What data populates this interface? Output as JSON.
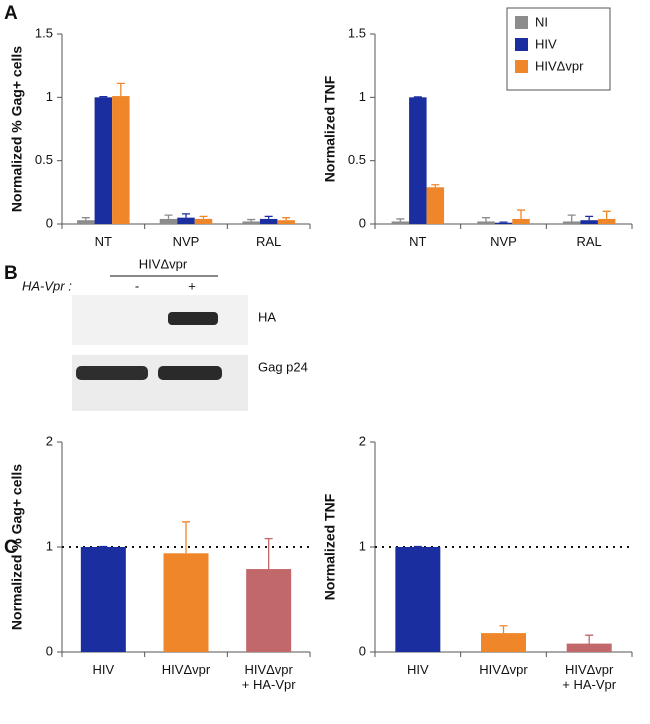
{
  "panel_labels": [
    "A",
    "B",
    "C"
  ],
  "chart_data": [
    {
      "type": "bar",
      "ylabel": "Normalized % Gag+ cells",
      "categories": [
        "NT",
        "NVP",
        "RAL"
      ],
      "ylim": [
        0,
        1.5
      ],
      "yticks": [
        0,
        0.5,
        1,
        1.5
      ],
      "series": [
        {
          "name": "NI",
          "color": "#8c8c8c",
          "values": [
            0.03,
            0.04,
            0.02
          ],
          "errors": [
            0.02,
            0.03,
            0.015
          ]
        },
        {
          "name": "HIV",
          "color": "#1a2ea0",
          "values": [
            1.0,
            0.05,
            0.04
          ],
          "errors": [
            0.005,
            0.03,
            0.02
          ]
        },
        {
          "name": "HIVΔvpr",
          "color": "#f0862a",
          "values": [
            1.01,
            0.04,
            0.03
          ],
          "errors": [
            0.1,
            0.02,
            0.02
          ]
        }
      ]
    },
    {
      "type": "bar",
      "ylabel": "Normalized TNF",
      "categories": [
        "NT",
        "NVP",
        "RAL"
      ],
      "ylim": [
        0,
        1.5
      ],
      "yticks": [
        0,
        0.5,
        1,
        1.5
      ],
      "legend": "top right",
      "series": [
        {
          "name": "NI",
          "color": "#8c8c8c",
          "values": [
            0.02,
            0.02,
            0.02
          ],
          "errors": [
            0.02,
            0.03,
            0.05
          ]
        },
        {
          "name": "HIV",
          "color": "#1a2ea0",
          "values": [
            1.0,
            0.01,
            0.03
          ],
          "errors": [
            0.003,
            0.005,
            0.03
          ]
        },
        {
          "name": "HIVΔvpr",
          "color": "#f0862a",
          "values": [
            0.29,
            0.04,
            0.04
          ],
          "errors": [
            0.02,
            0.07,
            0.06
          ]
        }
      ]
    },
    {
      "type": "bar",
      "ylabel": "Normalized % Gag+ cells",
      "categories": [
        "HIV",
        "HIVΔvpr",
        "HIVΔvpr\n+ HA-Vpr"
      ],
      "ylim": [
        0,
        2
      ],
      "yticks": [
        0,
        1,
        2
      ],
      "reference_line": 1,
      "series": [
        {
          "colors": [
            "#1a2ea0",
            "#f0862a",
            "#c0686a"
          ],
          "values": [
            1.0,
            0.94,
            0.79
          ],
          "errors": [
            0.005,
            0.3,
            0.29
          ]
        }
      ]
    },
    {
      "type": "bar",
      "ylabel": "Normalized TNF",
      "categories": [
        "HIV",
        "HIVΔvpr",
        "HIVΔvpr\n+ HA-Vpr"
      ],
      "ylim": [
        0,
        2
      ],
      "yticks": [
        0,
        1,
        2
      ],
      "reference_line": 1,
      "series": [
        {
          "colors": [
            "#1a2ea0",
            "#f0862a",
            "#c0686a"
          ],
          "values": [
            1.0,
            0.18,
            0.08
          ],
          "errors": [
            0.005,
            0.07,
            0.08
          ]
        }
      ]
    }
  ],
  "blot": {
    "header": "HIVΔvpr",
    "row_label": "HA-Vpr :",
    "lanes": [
      "-",
      "+"
    ],
    "bands": [
      "HA",
      "Gag p24"
    ]
  }
}
